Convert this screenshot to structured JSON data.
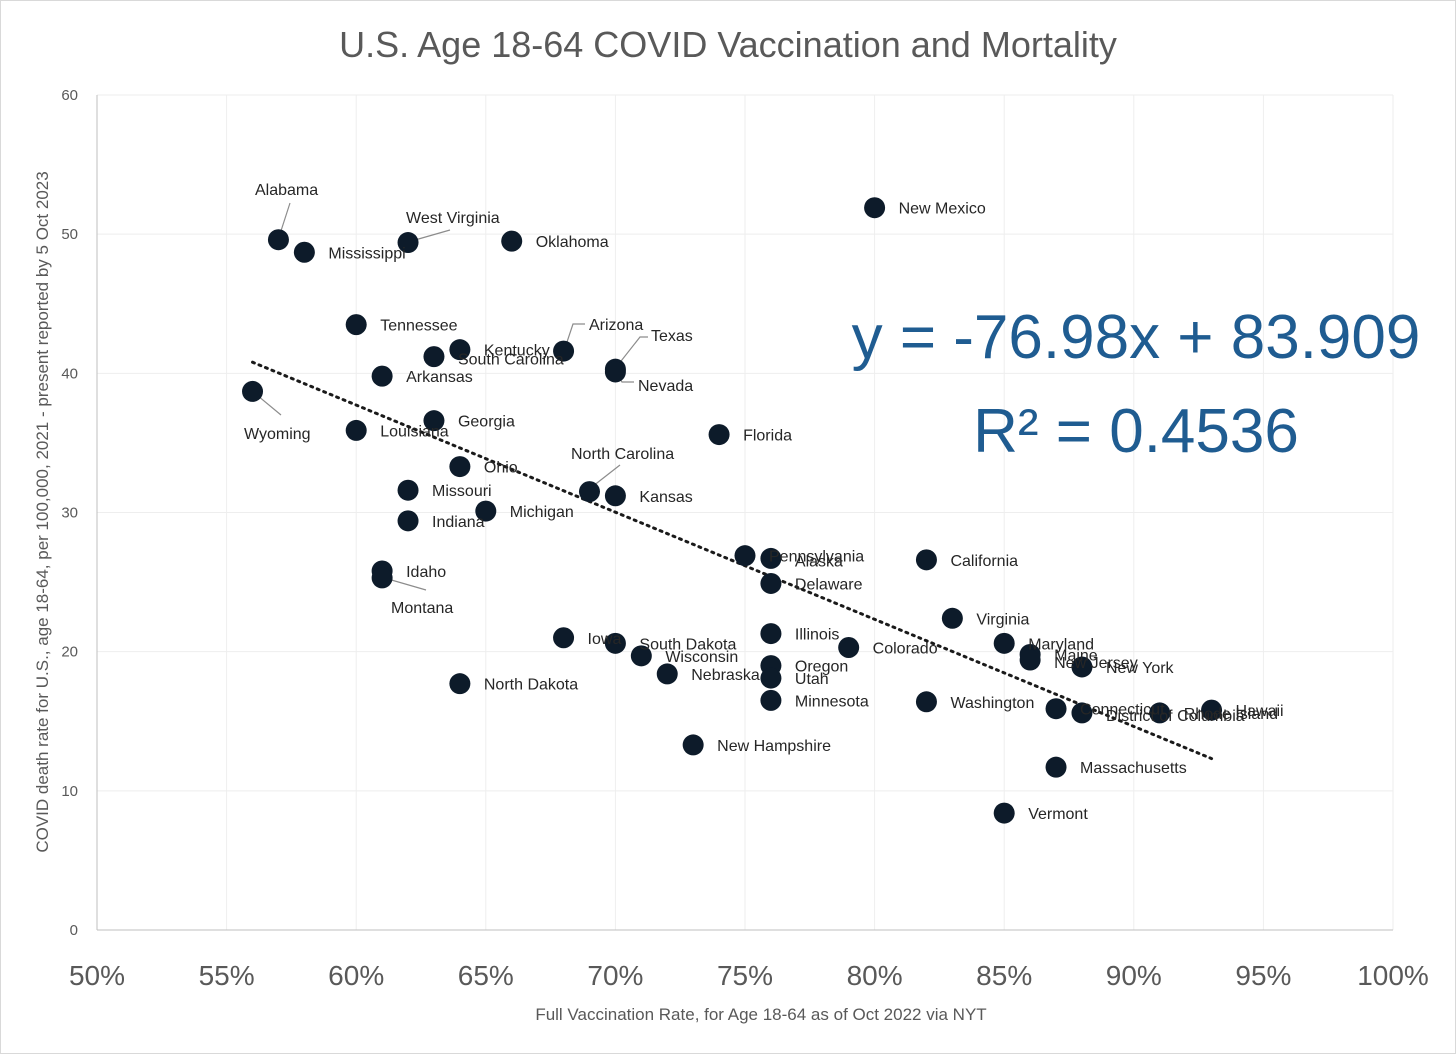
{
  "chart_data": {
    "type": "scatter",
    "title": "U.S. Age 18-64 COVID Vaccination and Mortality",
    "xlabel": "Full Vaccination Rate, for Age 18-64 as of Oct 2022 via NYT",
    "ylabel": "COVID death rate for U.S., age 18-64, per 100,000, 2021 - present reported by 5 Oct 2023",
    "xlim": [
      0.5,
      1.0
    ],
    "ylim": [
      0,
      60
    ],
    "x_ticks": [
      "50%",
      "55%",
      "60%",
      "65%",
      "70%",
      "75%",
      "80%",
      "85%",
      "90%",
      "95%",
      "100%"
    ],
    "y_ticks": [
      "0",
      "10",
      "20",
      "30",
      "40",
      "50",
      "60"
    ],
    "grid": true,
    "trendline": {
      "type": "linear",
      "slope": -76.98,
      "intercept": 83.909,
      "x_range": [
        0.56,
        0.93
      ],
      "equation": "y = -76.98x + 83.909",
      "r_squared": "R² = 0.4536"
    },
    "points": [
      {
        "label": "Alabama",
        "x": 0.57,
        "y": 49.6
      },
      {
        "label": "Mississippi",
        "x": 0.58,
        "y": 48.7
      },
      {
        "label": "West Virginia",
        "x": 0.62,
        "y": 49.4
      },
      {
        "label": "Oklahoma",
        "x": 0.66,
        "y": 49.5
      },
      {
        "label": "New Mexico",
        "x": 0.8,
        "y": 51.9
      },
      {
        "label": "Tennessee",
        "x": 0.6,
        "y": 43.5
      },
      {
        "label": "Kentucky",
        "x": 0.64,
        "y": 41.7
      },
      {
        "label": "South Carolina",
        "x": 0.63,
        "y": 41.2
      },
      {
        "label": "Arizona",
        "x": 0.68,
        "y": 41.6
      },
      {
        "label": "Texas",
        "x": 0.7,
        "y": 40.3
      },
      {
        "label": "Nevada",
        "x": 0.7,
        "y": 40.1
      },
      {
        "label": "Arkansas",
        "x": 0.61,
        "y": 39.8
      },
      {
        "label": "Wyoming",
        "x": 0.56,
        "y": 38.7
      },
      {
        "label": "Georgia",
        "x": 0.63,
        "y": 36.6
      },
      {
        "label": "Louisiana",
        "x": 0.6,
        "y": 35.9
      },
      {
        "label": "Florida",
        "x": 0.74,
        "y": 35.6
      },
      {
        "label": "Ohio",
        "x": 0.64,
        "y": 33.3
      },
      {
        "label": "North Carolina",
        "x": 0.69,
        "y": 31.5
      },
      {
        "label": "Missouri",
        "x": 0.62,
        "y": 31.6
      },
      {
        "label": "Kansas",
        "x": 0.7,
        "y": 31.2
      },
      {
        "label": "Michigan",
        "x": 0.65,
        "y": 30.1
      },
      {
        "label": "Indiana",
        "x": 0.62,
        "y": 29.4
      },
      {
        "label": "Pennsylvania",
        "x": 0.75,
        "y": 26.9
      },
      {
        "label": "Alaska",
        "x": 0.76,
        "y": 26.7
      },
      {
        "label": "California",
        "x": 0.82,
        "y": 26.6
      },
      {
        "label": "Delaware",
        "x": 0.76,
        "y": 24.9
      },
      {
        "label": "Idaho",
        "x": 0.61,
        "y": 25.8
      },
      {
        "label": "Montana",
        "x": 0.61,
        "y": 25.3
      },
      {
        "label": "Virginia",
        "x": 0.83,
        "y": 22.4
      },
      {
        "label": "Iowa",
        "x": 0.68,
        "y": 21.0
      },
      {
        "label": "South Dakota",
        "x": 0.7,
        "y": 20.6
      },
      {
        "label": "Illinois",
        "x": 0.76,
        "y": 21.3
      },
      {
        "label": "Colorado",
        "x": 0.79,
        "y": 20.3
      },
      {
        "label": "Maryland",
        "x": 0.85,
        "y": 20.6
      },
      {
        "label": "Maine",
        "x": 0.86,
        "y": 19.8
      },
      {
        "label": "New Jersey",
        "x": 0.86,
        "y": 19.4
      },
      {
        "label": "New York",
        "x": 0.88,
        "y": 18.9
      },
      {
        "label": "Wisconsin",
        "x": 0.71,
        "y": 19.7
      },
      {
        "label": "Oregon",
        "x": 0.76,
        "y": 19.0
      },
      {
        "label": "Utah",
        "x": 0.76,
        "y": 18.1
      },
      {
        "label": "Nebraska",
        "x": 0.72,
        "y": 18.4
      },
      {
        "label": "North Dakota",
        "x": 0.64,
        "y": 17.7
      },
      {
        "label": "Minnesota",
        "x": 0.76,
        "y": 16.5
      },
      {
        "label": "Washington",
        "x": 0.82,
        "y": 16.4
      },
      {
        "label": "Connecticut",
        "x": 0.87,
        "y": 15.9
      },
      {
        "label": "District of Columbia",
        "x": 0.88,
        "y": 15.6
      },
      {
        "label": "Rhode Island",
        "x": 0.91,
        "y": 15.6
      },
      {
        "label": "Hawaii",
        "x": 0.93,
        "y": 15.8
      },
      {
        "label": "New Hampshire",
        "x": 0.73,
        "y": 13.3
      },
      {
        "label": "Massachusetts",
        "x": 0.87,
        "y": 11.7
      },
      {
        "label": "Vermont",
        "x": 0.85,
        "y": 8.4
      }
    ]
  }
}
